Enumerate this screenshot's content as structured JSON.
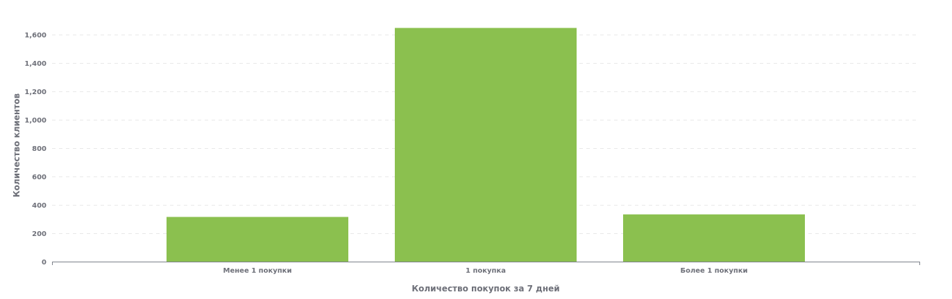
{
  "chart_data": {
    "type": "bar",
    "categories": [
      "Менее 1 покупки",
      "1 покупка",
      "Более 1 покупки"
    ],
    "values": [
      315,
      1647,
      333
    ],
    "xlabel": "Количество покупок за 7 дней",
    "ylabel": "Количество клиентов",
    "ylim": [
      0,
      1600
    ],
    "yticks": [
      0,
      200,
      400,
      600,
      800,
      1000,
      1200,
      1400,
      1600
    ],
    "ytick_labels": [
      "0",
      "200",
      "400",
      "600",
      "800",
      "1,000",
      "1,200",
      "1,400",
      "1,600"
    ],
    "grid": true,
    "bar_color": "#8bc04f"
  }
}
